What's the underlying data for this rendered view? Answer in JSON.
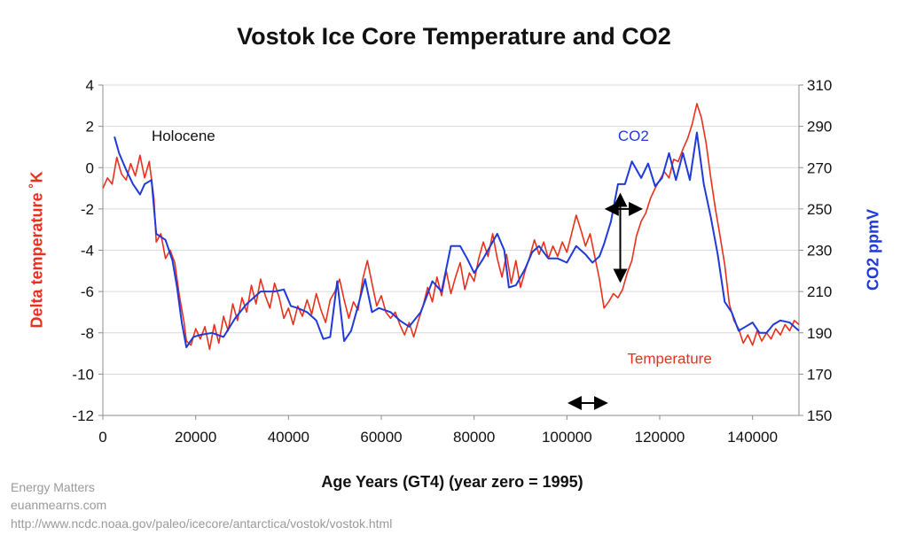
{
  "chart_data": {
    "type": "line",
    "title": "Vostok Ice Core Temperature and CO2",
    "xlabel": "Age Years (GT4) (year zero = 1995)",
    "ylabel_left": "Delta temperature ˚K",
    "ylabel_right": "CO2 ppmV",
    "xlim": [
      0,
      150000
    ],
    "ylim_left": [
      -12,
      4
    ],
    "ylim_right": [
      150,
      310
    ],
    "x_ticks": [
      0,
      20000,
      40000,
      60000,
      80000,
      100000,
      120000,
      140000
    ],
    "y_ticks_left": [
      4,
      2,
      0,
      -2,
      -4,
      -6,
      -8,
      -10,
      -12
    ],
    "y_ticks_right": [
      310,
      290,
      270,
      250,
      230,
      210,
      190,
      170,
      150
    ],
    "grid": "horizontal",
    "series": [
      {
        "name": "Temperature",
        "axis": "left",
        "color": "#e8301c",
        "points": [
          [
            0,
            -1
          ],
          [
            1000,
            -0.5
          ],
          [
            2000,
            -0.8
          ],
          [
            3000,
            0.5
          ],
          [
            4000,
            -0.3
          ],
          [
            5000,
            -0.6
          ],
          [
            6000,
            0.2
          ],
          [
            7000,
            -0.4
          ],
          [
            8000,
            0.6
          ],
          [
            9000,
            -0.5
          ],
          [
            10000,
            0.3
          ],
          [
            11000,
            -1.5
          ],
          [
            11500,
            -3.6
          ],
          [
            12500,
            -3.2
          ],
          [
            13500,
            -4.4
          ],
          [
            14500,
            -4.0
          ],
          [
            15500,
            -4.6
          ],
          [
            16500,
            -6.2
          ],
          [
            17500,
            -7.5
          ],
          [
            18000,
            -8.4
          ],
          [
            19000,
            -8.6
          ],
          [
            20000,
            -7.8
          ],
          [
            21000,
            -8.3
          ],
          [
            22000,
            -7.7
          ],
          [
            23000,
            -8.8
          ],
          [
            24000,
            -7.6
          ],
          [
            25000,
            -8.5
          ],
          [
            26000,
            -7.2
          ],
          [
            27000,
            -7.9
          ],
          [
            28000,
            -6.6
          ],
          [
            29000,
            -7.4
          ],
          [
            30000,
            -6.3
          ],
          [
            31000,
            -7.0
          ],
          [
            32000,
            -5.7
          ],
          [
            33000,
            -6.6
          ],
          [
            34000,
            -5.4
          ],
          [
            35000,
            -6.2
          ],
          [
            36000,
            -6.8
          ],
          [
            37000,
            -5.6
          ],
          [
            38000,
            -6.3
          ],
          [
            39000,
            -7.3
          ],
          [
            40000,
            -6.8
          ],
          [
            41000,
            -7.6
          ],
          [
            42000,
            -6.7
          ],
          [
            43000,
            -7.2
          ],
          [
            44000,
            -6.4
          ],
          [
            45000,
            -7.1
          ],
          [
            46000,
            -6.1
          ],
          [
            47000,
            -6.9
          ],
          [
            48000,
            -7.5
          ],
          [
            49000,
            -6.4
          ],
          [
            50000,
            -6.0
          ],
          [
            51000,
            -5.4
          ],
          [
            52000,
            -6.4
          ],
          [
            53000,
            -7.3
          ],
          [
            54000,
            -6.5
          ],
          [
            55000,
            -6.9
          ],
          [
            56000,
            -5.4
          ],
          [
            57000,
            -4.5
          ],
          [
            58000,
            -5.6
          ],
          [
            59000,
            -6.7
          ],
          [
            60000,
            -6.2
          ],
          [
            61000,
            -7.0
          ],
          [
            62000,
            -7.3
          ],
          [
            63000,
            -7.0
          ],
          [
            64000,
            -7.6
          ],
          [
            65000,
            -8.1
          ],
          [
            66000,
            -7.5
          ],
          [
            67000,
            -8.2
          ],
          [
            68000,
            -7.4
          ],
          [
            69000,
            -6.7
          ],
          [
            70000,
            -5.8
          ],
          [
            71000,
            -6.5
          ],
          [
            72000,
            -5.3
          ],
          [
            73000,
            -6.2
          ],
          [
            74000,
            -5.0
          ],
          [
            75000,
            -6.1
          ],
          [
            76000,
            -5.3
          ],
          [
            77000,
            -4.6
          ],
          [
            78000,
            -5.9
          ],
          [
            79000,
            -5.1
          ],
          [
            80000,
            -5.5
          ],
          [
            81000,
            -4.4
          ],
          [
            82000,
            -3.6
          ],
          [
            83000,
            -4.3
          ],
          [
            84000,
            -3.2
          ],
          [
            85000,
            -4.4
          ],
          [
            86000,
            -5.3
          ],
          [
            87000,
            -4.2
          ],
          [
            88000,
            -5.6
          ],
          [
            89000,
            -4.5
          ],
          [
            90000,
            -5.8
          ],
          [
            91000,
            -5.0
          ],
          [
            92000,
            -4.3
          ],
          [
            93000,
            -3.5
          ],
          [
            94000,
            -4.2
          ],
          [
            95000,
            -3.6
          ],
          [
            96000,
            -4.4
          ],
          [
            97000,
            -3.8
          ],
          [
            98000,
            -4.3
          ],
          [
            99000,
            -3.6
          ],
          [
            100000,
            -4.1
          ],
          [
            101000,
            -3.2
          ],
          [
            102000,
            -2.3
          ],
          [
            103000,
            -3.0
          ],
          [
            104000,
            -3.8
          ],
          [
            105000,
            -3.2
          ],
          [
            106000,
            -4.3
          ],
          [
            107000,
            -5.4
          ],
          [
            108000,
            -6.8
          ],
          [
            109000,
            -6.5
          ],
          [
            110000,
            -6.1
          ],
          [
            111000,
            -6.3
          ],
          [
            112000,
            -5.9
          ],
          [
            113000,
            -5.1
          ],
          [
            114000,
            -4.5
          ],
          [
            115000,
            -3.3
          ],
          [
            116000,
            -2.6
          ],
          [
            117000,
            -2.2
          ],
          [
            118000,
            -1.5
          ],
          [
            119000,
            -1.0
          ],
          [
            120000,
            -0.6
          ],
          [
            121000,
            -0.2
          ],
          [
            122000,
            -0.5
          ],
          [
            123000,
            0.4
          ],
          [
            124000,
            0.3
          ],
          [
            125000,
            0.9
          ],
          [
            126000,
            1.4
          ],
          [
            127000,
            2.1
          ],
          [
            128000,
            3.1
          ],
          [
            129000,
            2.4
          ],
          [
            130000,
            1.2
          ],
          [
            131000,
            -0.5
          ],
          [
            132000,
            -2.0
          ],
          [
            133000,
            -3.3
          ],
          [
            134000,
            -4.7
          ],
          [
            135000,
            -6.6
          ],
          [
            136000,
            -7.4
          ],
          [
            137000,
            -7.8
          ],
          [
            138000,
            -8.5
          ],
          [
            139000,
            -8.1
          ],
          [
            140000,
            -8.6
          ],
          [
            141000,
            -7.9
          ],
          [
            142000,
            -8.4
          ],
          [
            143000,
            -8.0
          ],
          [
            144000,
            -8.3
          ],
          [
            145000,
            -7.8
          ],
          [
            146000,
            -8.1
          ],
          [
            147000,
            -7.6
          ],
          [
            148000,
            -7.9
          ],
          [
            149000,
            -7.4
          ],
          [
            150000,
            -7.6
          ]
        ]
      },
      {
        "name": "CO2",
        "axis": "right",
        "color": "#1f3ad8",
        "points": [
          [
            2500,
            285
          ],
          [
            3500,
            277
          ],
          [
            5000,
            269
          ],
          [
            6500,
            262
          ],
          [
            8000,
            257
          ],
          [
            9000,
            262
          ],
          [
            10500,
            264
          ],
          [
            11500,
            238
          ],
          [
            13500,
            235
          ],
          [
            15000,
            225
          ],
          [
            16000,
            212
          ],
          [
            17000,
            195
          ],
          [
            18000,
            183
          ],
          [
            19500,
            188
          ],
          [
            21000,
            189
          ],
          [
            23500,
            190
          ],
          [
            26000,
            188
          ],
          [
            28500,
            197
          ],
          [
            31000,
            204
          ],
          [
            34000,
            210
          ],
          [
            37000,
            210
          ],
          [
            39000,
            211
          ],
          [
            40500,
            203
          ],
          [
            42000,
            202
          ],
          [
            44000,
            200
          ],
          [
            46000,
            196
          ],
          [
            47500,
            187
          ],
          [
            49000,
            188
          ],
          [
            50500,
            215
          ],
          [
            52000,
            186
          ],
          [
            53500,
            191
          ],
          [
            55000,
            203
          ],
          [
            56500,
            216
          ],
          [
            58000,
            200
          ],
          [
            59500,
            202
          ],
          [
            62000,
            200
          ],
          [
            64000,
            196
          ],
          [
            66000,
            193
          ],
          [
            68500,
            200
          ],
          [
            71000,
            215
          ],
          [
            73000,
            210
          ],
          [
            75000,
            232
          ],
          [
            77000,
            232
          ],
          [
            78500,
            226
          ],
          [
            80000,
            219
          ],
          [
            82000,
            226
          ],
          [
            85000,
            238
          ],
          [
            86500,
            230
          ],
          [
            87500,
            212
          ],
          [
            89000,
            213
          ],
          [
            91000,
            221
          ],
          [
            92500,
            229
          ],
          [
            94000,
            232
          ],
          [
            96000,
            226
          ],
          [
            98000,
            226
          ],
          [
            100000,
            224
          ],
          [
            102000,
            232
          ],
          [
            104000,
            228
          ],
          [
            105500,
            224
          ],
          [
            107000,
            227
          ],
          [
            108000,
            233
          ],
          [
            109500,
            244
          ],
          [
            111000,
            262
          ],
          [
            112500,
            262
          ],
          [
            114000,
            273
          ],
          [
            116000,
            265
          ],
          [
            117500,
            272
          ],
          [
            119000,
            261
          ],
          [
            120500,
            265
          ],
          [
            122000,
            277
          ],
          [
            123500,
            264
          ],
          [
            125000,
            277
          ],
          [
            126500,
            264
          ],
          [
            128000,
            287
          ],
          [
            129500,
            262
          ],
          [
            131000,
            246
          ],
          [
            132500,
            228
          ],
          [
            134000,
            205
          ],
          [
            135500,
            200
          ],
          [
            137000,
            191
          ],
          [
            138500,
            193
          ],
          [
            140000,
            195
          ],
          [
            141500,
            190
          ],
          [
            143000,
            190
          ],
          [
            144500,
            194
          ],
          [
            146000,
            196
          ],
          [
            148000,
            195
          ],
          [
            150000,
            191
          ]
        ]
      }
    ],
    "annotations": {
      "holocene": "Holocene",
      "co2_label": "CO2",
      "temperature_label": "Temperature"
    }
  },
  "credits": {
    "line1": "Energy Matters",
    "line2": "euanmearns.com",
    "line3": "http://www.ncdc.noaa.gov/paleo/icecore/antarctica/vostok/vostok.html"
  }
}
